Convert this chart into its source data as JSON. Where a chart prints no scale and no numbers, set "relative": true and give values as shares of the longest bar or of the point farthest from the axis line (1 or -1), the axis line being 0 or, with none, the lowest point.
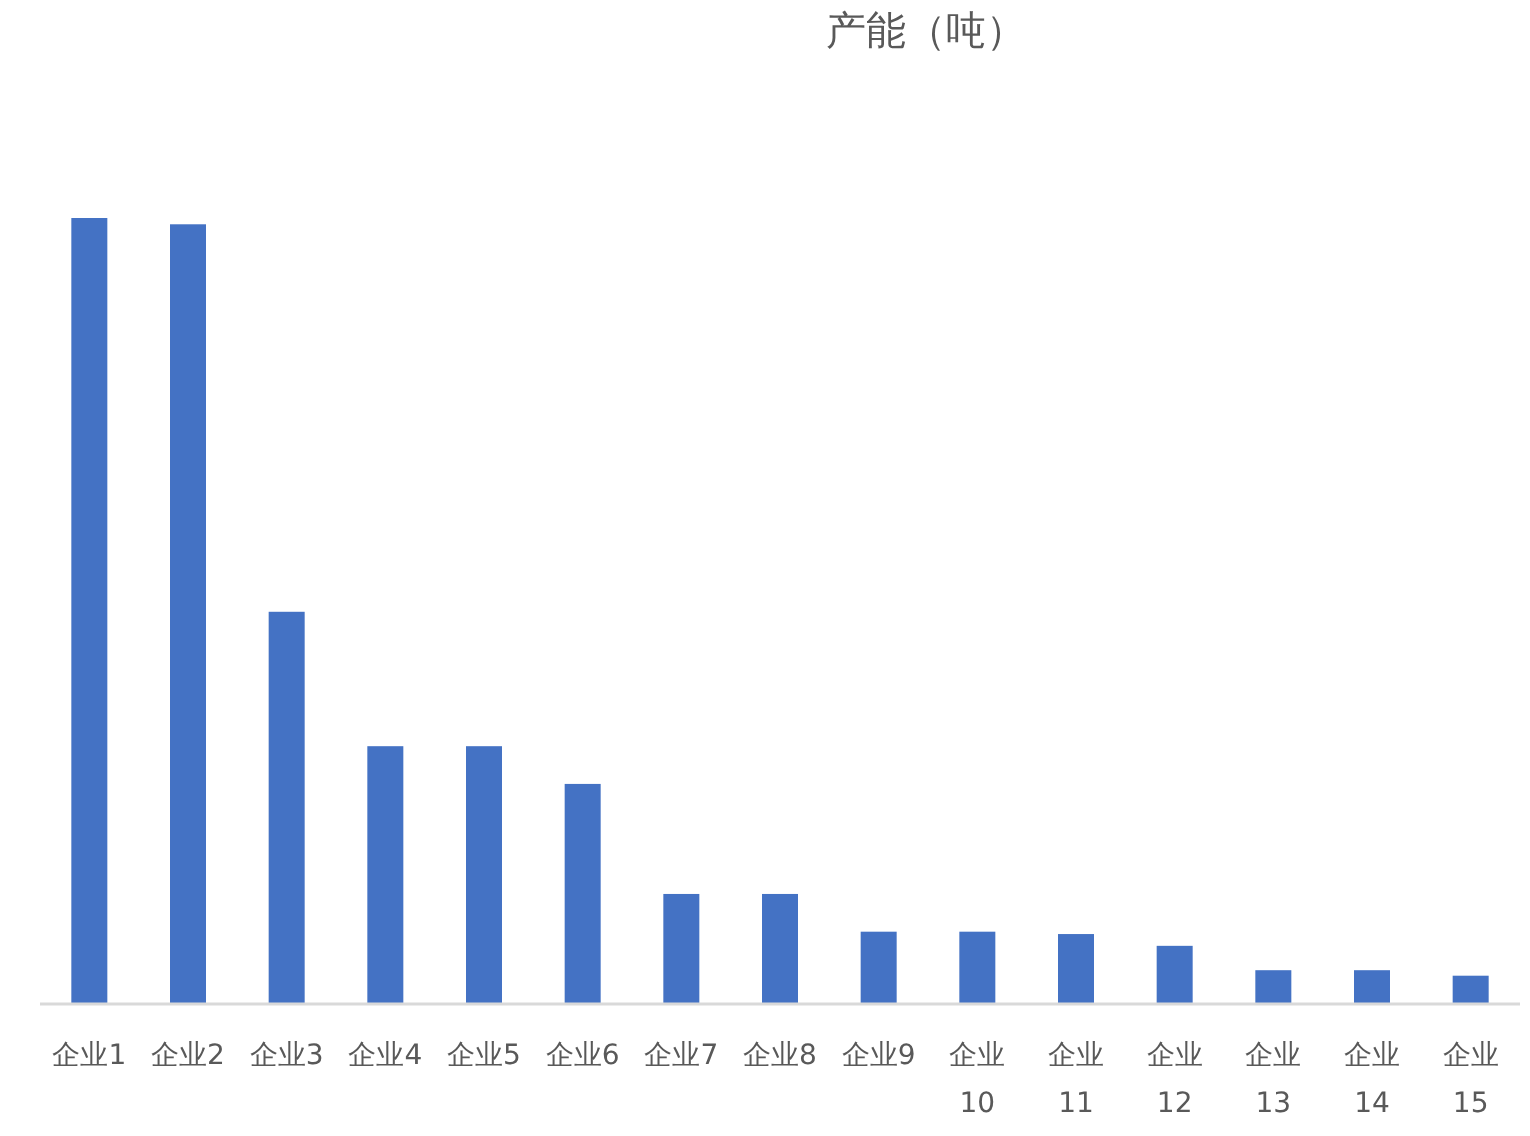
{
  "chart_data": {
    "type": "bar",
    "title": "产能（吨）",
    "relative": true,
    "color": "#4472c4",
    "categories": [
      "企业1",
      "企业2",
      "企业3",
      "企业4",
      "企业5",
      "企业6",
      "企业7",
      "企业8",
      "企业9",
      "企业10",
      "企业11",
      "企业12",
      "企业13",
      "企业14",
      "企业15"
    ],
    "values": [
      1,
      0.992,
      0.499,
      0.328,
      0.328,
      0.28,
      0.14,
      0.14,
      0.092,
      0.092,
      0.089,
      0.074,
      0.043,
      0.043,
      0.036
    ]
  }
}
